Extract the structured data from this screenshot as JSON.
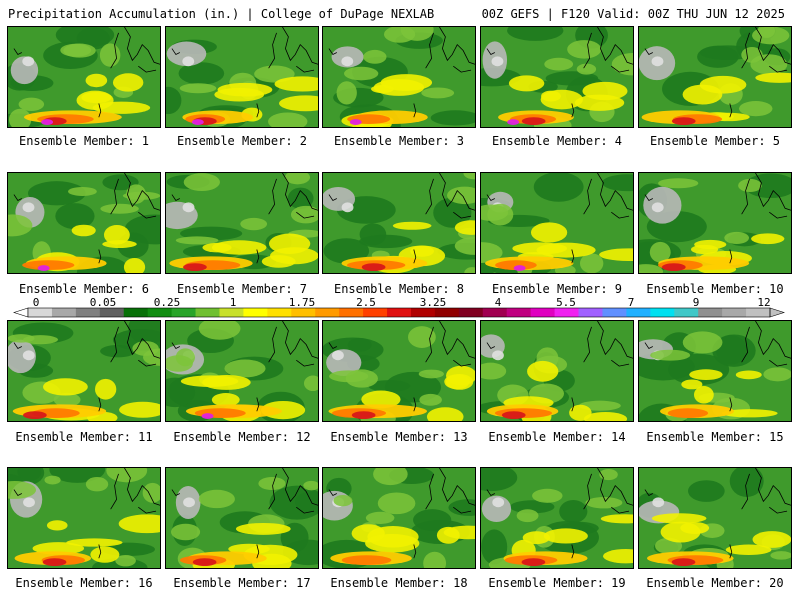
{
  "header": {
    "left": "Precipitation Accumulation (in.) | College of DuPage NEXLAB",
    "right": "00Z GEFS | F120 Valid: 00Z THU JUN 12 2025"
  },
  "colorbar": {
    "tick_labels": [
      "0",
      "0.05",
      "0.25",
      "1",
      "1.75",
      "2.5",
      "3.25",
      "4",
      "5.5",
      "7",
      "9",
      "12"
    ],
    "colors": [
      "#d8d8d8",
      "#a8a8a8",
      "#808080",
      "#606060",
      "#087008",
      "#108c10",
      "#28a428",
      "#70c030",
      "#c8e02a",
      "#ffff00",
      "#ffe000",
      "#ffbf00",
      "#ff9a00",
      "#ff7000",
      "#ff4000",
      "#e01010",
      "#b00000",
      "#900000",
      "#800020",
      "#a00050",
      "#c00080",
      "#e000c0",
      "#f020f0",
      "#a060ff",
      "#6090ff",
      "#20b0ff",
      "#00e0f0",
      "#40c8c8",
      "#909090",
      "#a8a8a8",
      "#c0c0c0"
    ]
  },
  "panels": [
    {
      "label": "Ensemble Member: 1"
    },
    {
      "label": "Ensemble Member: 2"
    },
    {
      "label": "Ensemble Member: 3"
    },
    {
      "label": "Ensemble Member: 4"
    },
    {
      "label": "Ensemble Member: 5"
    },
    {
      "label": "Ensemble Member: 6"
    },
    {
      "label": "Ensemble Member: 7"
    },
    {
      "label": "Ensemble Member: 8"
    },
    {
      "label": "Ensemble Member: 9"
    },
    {
      "label": "Ensemble Member: 10"
    },
    {
      "label": "Ensemble Member: 11"
    },
    {
      "label": "Ensemble Member: 12"
    },
    {
      "label": "Ensemble Member: 13"
    },
    {
      "label": "Ensemble Member: 14"
    },
    {
      "label": "Ensemble Member: 15"
    },
    {
      "label": "Ensemble Member: 16"
    },
    {
      "label": "Ensemble Member: 17"
    },
    {
      "label": "Ensemble Member: 18"
    },
    {
      "label": "Ensemble Member: 19"
    },
    {
      "label": "Ensemble Member: 20"
    }
  ]
}
